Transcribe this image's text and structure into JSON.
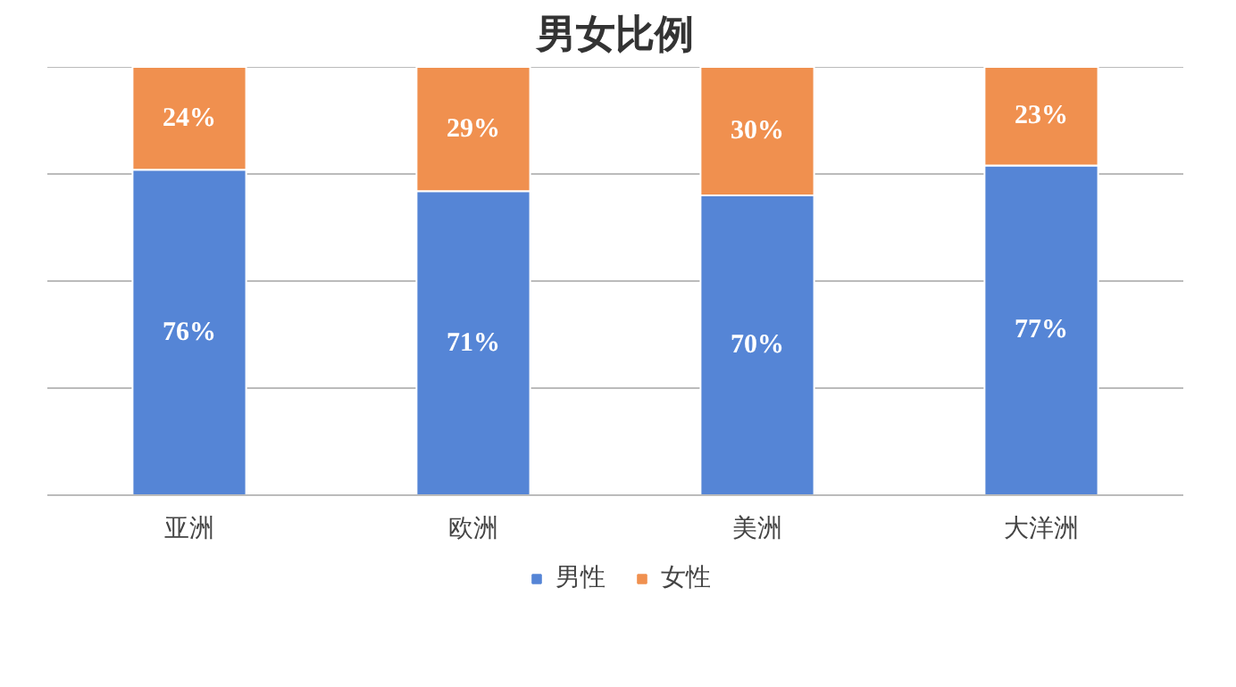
{
  "chart_data": {
    "type": "bar",
    "title": "男女比例",
    "categories": [
      "亚洲",
      "欧洲",
      "美洲",
      "大洋洲"
    ],
    "series": [
      {
        "name": "男性",
        "color": "#5585d6",
        "values": [
          76,
          71,
          70,
          77
        ],
        "value_labels": [
          "76%",
          "71%",
          "70%",
          "77%"
        ]
      },
      {
        "name": "女性",
        "color": "#f0904f",
        "values": [
          24,
          29,
          30,
          23
        ],
        "value_labels": [
          "24%",
          "29%",
          "30%",
          "23%"
        ]
      }
    ],
    "stacked": true,
    "ylim": [
      0,
      100
    ],
    "yticks": [
      {
        "value": 0,
        "label": null
      },
      {
        "value": 25,
        "label": null
      },
      {
        "value": 50,
        "label": null
      },
      {
        "value": 75,
        "label": null
      },
      {
        "value": 100,
        "label": null
      }
    ],
    "grid": "y",
    "legend": "bottom",
    "tick_labels": "x"
  }
}
